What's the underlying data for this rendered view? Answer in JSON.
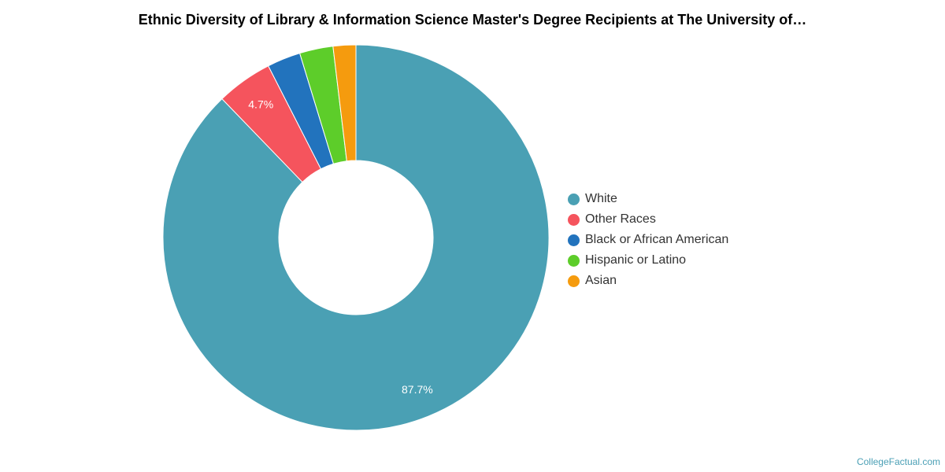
{
  "chart_data": {
    "type": "pie",
    "title": "Ethnic Diversity of Library & Information Science Master's Degree Recipients at The University of…",
    "categories": [
      "White",
      "Other Races",
      "Black or African American",
      "Hispanic or Latino",
      "Asian"
    ],
    "values": [
      87.7,
      4.7,
      2.8,
      2.8,
      1.9
    ],
    "colors": [
      "#4aa0b4",
      "#f5545d",
      "#2273bd",
      "#5dcd2a",
      "#f59b0e"
    ],
    "data_labels": [
      "87.7%",
      "4.7%",
      "",
      "",
      ""
    ],
    "legend_position": "right",
    "donut": true
  },
  "credit": "CollegeFactual.com"
}
